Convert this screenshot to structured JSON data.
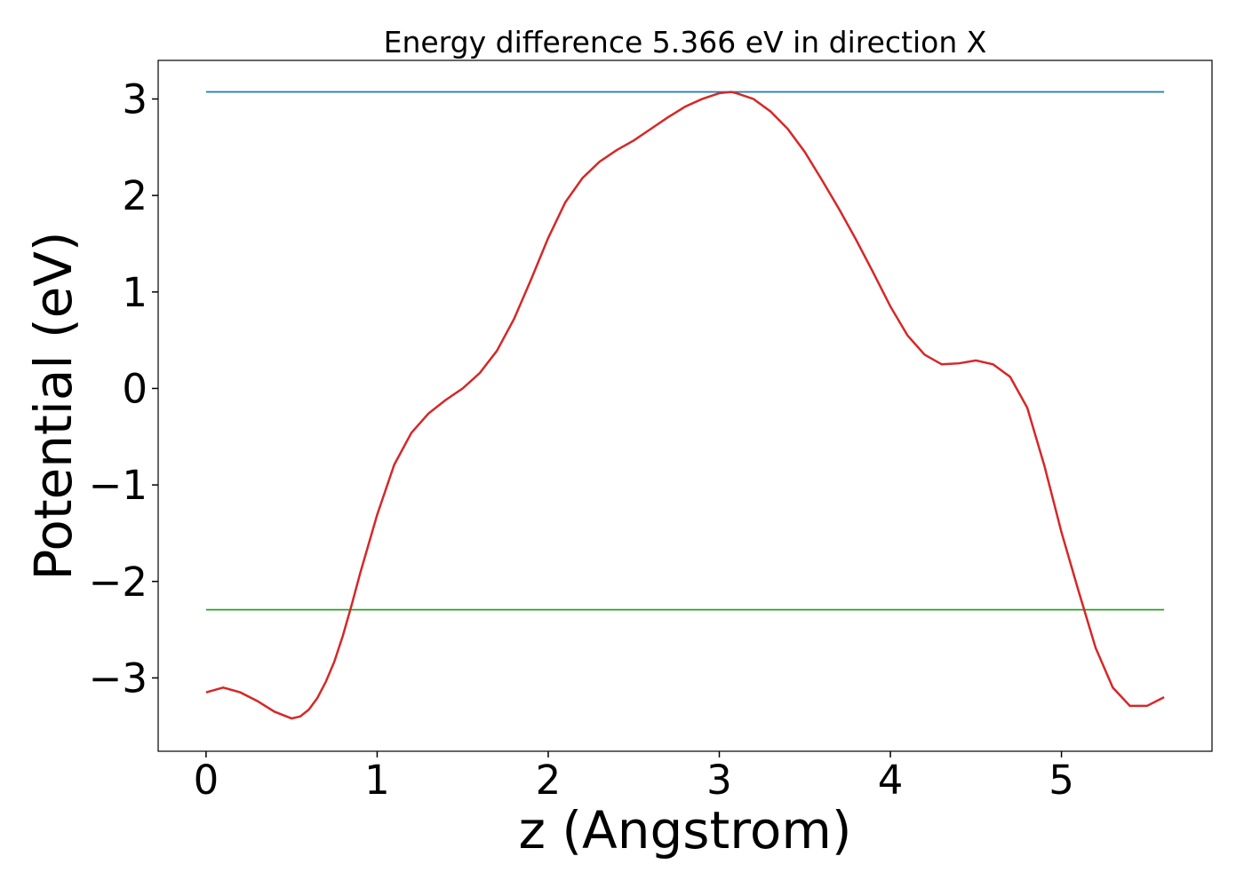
{
  "chart_data": {
    "type": "line",
    "title": "Energy difference 5.366 eV in direction X",
    "x_label": "z (Angstrom)",
    "y_label": "Potential (eV)",
    "xlim": [
      -0.28,
      5.88
    ],
    "ylim": [
      -3.76,
      3.4
    ],
    "xticks": [
      0,
      1,
      2,
      3,
      4,
      5
    ],
    "yticks": [
      {
        "value": -3,
        "label": "−3"
      },
      {
        "value": -2,
        "label": "−2"
      },
      {
        "value": -1,
        "label": "−1"
      },
      0,
      1,
      2,
      3
    ],
    "series": [
      {
        "color": "#1f77b4",
        "x": [
          0,
          5.6
        ],
        "values": [
          3.073,
          3.073
        ]
      },
      {
        "color": "#2ca02c",
        "x": [
          0,
          5.6
        ],
        "values": [
          -2.293,
          -2.293
        ]
      },
      {
        "color": "#d62728",
        "x": [
          0,
          0.1,
          0.2,
          0.3,
          0.4,
          0.5,
          0.55,
          0.6,
          0.65,
          0.7,
          0.75,
          0.8,
          0.85,
          0.9,
          1.0,
          1.1,
          1.2,
          1.3,
          1.4,
          1.5,
          1.6,
          1.7,
          1.8,
          1.9,
          2.0,
          2.1,
          2.2,
          2.3,
          2.4,
          2.5,
          2.6,
          2.7,
          2.8,
          2.9,
          3.0,
          3.07,
          3.1,
          3.2,
          3.3,
          3.4,
          3.5,
          3.6,
          3.7,
          3.8,
          3.9,
          4.0,
          4.1,
          4.2,
          4.3,
          4.4,
          4.5,
          4.6,
          4.7,
          4.8,
          4.9,
          5.0,
          5.1,
          5.2,
          5.3,
          5.4,
          5.5,
          5.6
        ],
        "values": [
          -3.15,
          -3.1,
          -3.15,
          -3.24,
          -3.35,
          -3.42,
          -3.4,
          -3.33,
          -3.21,
          -3.04,
          -2.83,
          -2.56,
          -2.25,
          -1.92,
          -1.31,
          -0.79,
          -0.46,
          -0.26,
          -0.12,
          0.0,
          0.16,
          0.39,
          0.72,
          1.13,
          1.56,
          1.93,
          2.18,
          2.35,
          2.47,
          2.57,
          2.69,
          2.81,
          2.92,
          3.0,
          3.06,
          3.073,
          3.06,
          3.0,
          2.87,
          2.69,
          2.45,
          2.16,
          1.86,
          1.54,
          1.2,
          0.85,
          0.55,
          0.35,
          0.25,
          0.26,
          0.29,
          0.25,
          0.12,
          -0.2,
          -0.8,
          -1.49,
          -2.1,
          -2.69,
          -3.1,
          -3.29,
          -3.29,
          -3.2
        ]
      }
    ]
  }
}
